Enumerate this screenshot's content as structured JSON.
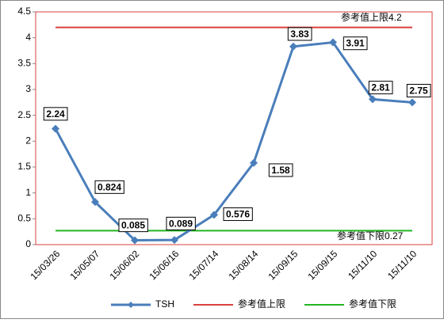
{
  "chart_data": {
    "type": "line",
    "categories": [
      "15/03/26",
      "15/05/07",
      "15/06/02",
      "15/06/16",
      "15/07/14",
      "15/08/14",
      "15/09/15",
      "15/09/15",
      "15/11/10",
      "15/11/10"
    ],
    "series": [
      {
        "name": "TSH",
        "color": "#4a7ebb",
        "values": [
          2.24,
          0.824,
          0.085,
          0.089,
          0.576,
          1.58,
          3.83,
          3.91,
          2.81,
          2.75
        ],
        "data_labels": true
      },
      {
        "name": "参考值上限",
        "color": "#d9413e",
        "values": [
          4.2,
          4.2,
          4.2,
          4.2,
          4.2,
          4.2,
          4.2,
          4.2,
          4.2,
          4.2
        ]
      },
      {
        "name": "参考值下限",
        "color": "#22b522",
        "values": [
          0.27,
          0.27,
          0.27,
          0.27,
          0.27,
          0.27,
          0.27,
          0.27,
          0.27,
          0.27
        ]
      }
    ],
    "annotations": [
      "参考值上限4.2",
      "参考值下限0.27"
    ],
    "ylim": [
      0,
      4.5
    ],
    "yticks": [
      0,
      0.5,
      1,
      1.5,
      2,
      2.5,
      3,
      3.5,
      4,
      4.5
    ],
    "grid": false,
    "legend": "bottom"
  }
}
